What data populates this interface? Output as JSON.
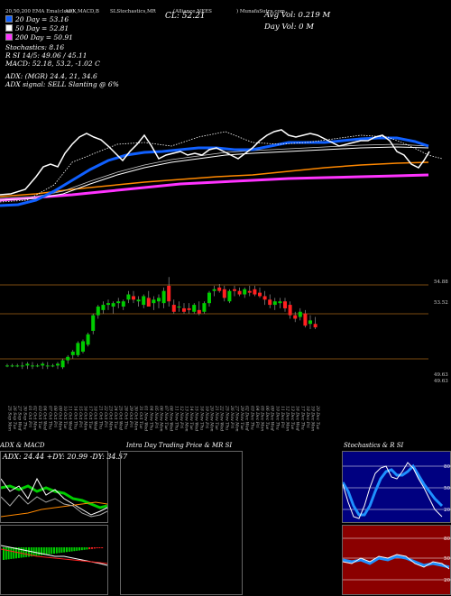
{
  "header": {
    "ema": "20,50,200  EMA Ema(close)",
    "adx": "ADX,MACD,B",
    "sl": "SLStochastics,MR",
    "ticker": "(Alliance NEES",
    "munafa": ") MunafaSutra.com",
    "cl": "CL: 52.21",
    "avg_vol": "Avg Vol: 0.219 M",
    "day_vol": "Day Vol: 0   M"
  },
  "legend": [
    {
      "label": "20  Day = 53.16",
      "color": "#1060ff"
    },
    {
      "label": "50  Day = 52.81",
      "color": "#ffffff"
    },
    {
      "label": "200  Day = 50.91",
      "color": "#ff33ff"
    }
  ],
  "indicators": {
    "stochastics": "Stochastics: 8.16",
    "rsi": "R                 SI 14/5: 49.06  / 45.11",
    "macd": "MACD: 52.18, 53.2,  -1.02  C",
    "adx": "ADX:                             (MGR) 24.4,  21,  34.6",
    "adx_signal": "ADX  signal: SELL  Slanting @ 6%"
  },
  "price_labels": [
    "54.88",
    "53.52",
    "49.63",
    "49.63"
  ],
  "panels": {
    "adx_title": "ADX  & MACD",
    "adx_values": "ADX: 24.44  +DY: 20.99 -DY: 34.57",
    "intraday_title": "Intra  Day Trading Price  & MR                    SI",
    "stoch_title": "Stochastics & R                    SI",
    "stoch_ticks": [
      "80",
      "50",
      "20"
    ],
    "rsi_ticks": [
      "80",
      "50",
      "20"
    ]
  },
  "colors": {
    "bull": "#00cc00",
    "bear": "#ff2020",
    "ema20": "#1060ff",
    "ema50": "#ffffff",
    "ema200": "#ff33ff",
    "orange": "#ff8800"
  },
  "chart_data": {
    "type": "candlestick",
    "dates": [
      "25 Sep",
      "26 Sep",
      "27 Sep",
      "30 Sep",
      "01 Oct",
      "02 Oct",
      "03 Oct",
      "04 Oct",
      "07 Oct",
      "08 Oct",
      "09 Oct",
      "10 Oct",
      "11 Oct",
      "14 Oct",
      "15 Oct",
      "16 Oct",
      "17 Oct",
      "18 Oct",
      "21 Oct",
      "22 Oct",
      "23 Oct",
      "24 Oct",
      "25 Oct",
      "28 Oct",
      "29 Oct",
      "30 Oct",
      "31 Oct",
      "01 Nov",
      "04 Nov",
      "05 Nov",
      "06 Nov",
      "07 Nov",
      "08 Nov",
      "11 Nov",
      "12 Nov",
      "13 Nov",
      "14 Nov",
      "15 Nov",
      "18 Nov",
      "19 Nov",
      "20 Nov",
      "21 Nov",
      "22 Nov",
      "25 Nov",
      "26 Nov",
      "27 Nov",
      "29 Nov",
      "02 Dec",
      "03 Dec",
      "04 Dec",
      "05 Dec",
      "06 Dec",
      "09 Dec",
      "10 Dec",
      "11 Dec",
      "12 Dec",
      "13 Dec",
      "16 Dec",
      "17 Dec",
      "18 Dec",
      "19 Dec",
      "20 Dec"
    ],
    "ohlc": [
      [
        50.0,
        50.1,
        49.9,
        50.0
      ],
      [
        50.0,
        50.1,
        49.9,
        50.0
      ],
      [
        50.0,
        50.1,
        49.9,
        50.0
      ],
      [
        50.0,
        50.2,
        49.8,
        50.0
      ],
      [
        50.0,
        50.2,
        49.8,
        50.1
      ],
      [
        50.0,
        50.2,
        49.8,
        50.0
      ],
      [
        50.0,
        50.1,
        49.9,
        50.0
      ],
      [
        50.0,
        50.2,
        49.8,
        50.1
      ],
      [
        50.0,
        50.2,
        49.8,
        50.0
      ],
      [
        50.0,
        50.1,
        49.9,
        50.0
      ],
      [
        50.0,
        50.2,
        49.8,
        50.1
      ],
      [
        49.9,
        50.4,
        49.8,
        50.3
      ],
      [
        50.3,
        50.6,
        50.1,
        50.5
      ],
      [
        50.6,
        50.9,
        50.4,
        50.8
      ],
      [
        50.6,
        51.4,
        50.5,
        51.3
      ],
      [
        50.8,
        51.5,
        50.7,
        51.4
      ],
      [
        51.2,
        51.9,
        51.1,
        51.8
      ],
      [
        52.0,
        53.0,
        51.8,
        52.9
      ],
      [
        52.9,
        53.5,
        52.7,
        53.4
      ],
      [
        53.2,
        53.7,
        53.0,
        53.5
      ],
      [
        53.5,
        53.8,
        53.2,
        53.6
      ],
      [
        53.4,
        53.7,
        53.0,
        53.6
      ],
      [
        53.6,
        53.9,
        53.3,
        53.7
      ],
      [
        53.4,
        53.8,
        53.2,
        53.7
      ],
      [
        53.8,
        54.3,
        53.6,
        54.1
      ],
      [
        54.0,
        54.3,
        53.6,
        53.8
      ],
      [
        53.7,
        54.0,
        53.4,
        53.8
      ],
      [
        53.5,
        54.1,
        53.3,
        54.0
      ],
      [
        53.9,
        54.3,
        53.4,
        53.4
      ],
      [
        53.6,
        54.0,
        53.2,
        53.8
      ],
      [
        53.7,
        54.1,
        53.3,
        53.9
      ],
      [
        53.6,
        54.5,
        53.3,
        54.3
      ],
      [
        54.6,
        55.1,
        53.4,
        53.7
      ],
      [
        53.5,
        53.8,
        53.0,
        53.1
      ],
      [
        53.4,
        53.7,
        53.1,
        53.4
      ],
      [
        53.3,
        53.6,
        53.0,
        53.1
      ],
      [
        53.3,
        53.6,
        53.0,
        53.2
      ],
      [
        53.1,
        53.6,
        53.0,
        53.5
      ],
      [
        53.2,
        53.7,
        52.9,
        53.0
      ],
      [
        53.1,
        53.7,
        53.0,
        53.6
      ],
      [
        53.6,
        54.3,
        53.4,
        54.2
      ],
      [
        54.3,
        54.6,
        54.0,
        54.4
      ],
      [
        54.5,
        54.7,
        54.2,
        54.3
      ],
      [
        54.4,
        54.6,
        53.7,
        53.9
      ],
      [
        53.7,
        54.4,
        53.6,
        54.3
      ],
      [
        54.4,
        54.6,
        54.0,
        54.3
      ],
      [
        54.3,
        54.5,
        54.0,
        54.1
      ],
      [
        54.1,
        54.5,
        53.9,
        54.4
      ],
      [
        54.3,
        54.6,
        54.0,
        54.2
      ],
      [
        54.4,
        54.6,
        54.0,
        54.1
      ],
      [
        54.2,
        54.5,
        53.9,
        54.0
      ],
      [
        54.0,
        54.3,
        53.5,
        53.8
      ],
      [
        53.8,
        54.1,
        53.3,
        53.5
      ],
      [
        53.5,
        53.9,
        53.2,
        53.7
      ],
      [
        53.6,
        53.9,
        53.3,
        53.7
      ],
      [
        53.7,
        53.9,
        53.1,
        53.3
      ],
      [
        53.5,
        53.7,
        52.7,
        52.9
      ],
      [
        52.9,
        53.1,
        52.5,
        52.7
      ],
      [
        52.8,
        53.3,
        52.6,
        53.1
      ],
      [
        53.0,
        53.2,
        52.2,
        52.3
      ],
      [
        52.4,
        52.9,
        52.1,
        52.6
      ],
      [
        52.4,
        52.8,
        52.1,
        52.2
      ]
    ],
    "ylim": [
      48.2,
      56.0
    ]
  }
}
